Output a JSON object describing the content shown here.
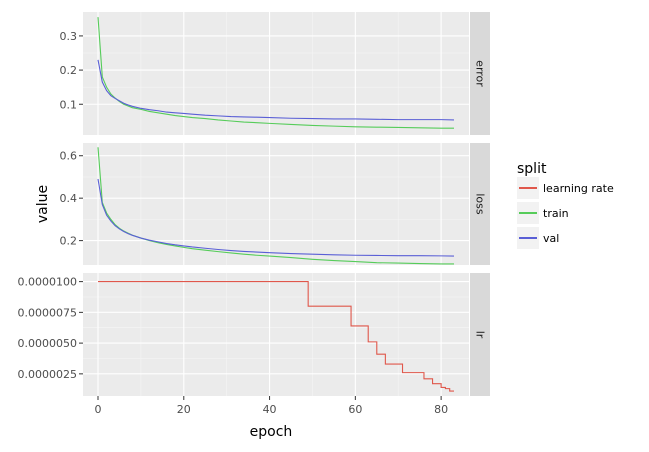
{
  "chart_data": {
    "type": "line",
    "xlabel": "epoch",
    "ylabel": "value",
    "x_ticks": [
      0,
      20,
      40,
      60,
      80
    ],
    "xlim": [
      -3.5,
      86.5
    ],
    "legend": {
      "title": "split",
      "placement": "right",
      "entries": [
        {
          "label": "learning rate",
          "color": "#e0574b"
        },
        {
          "label": "train",
          "color": "#56cc5a"
        },
        {
          "label": "val",
          "color": "#5a5fd6"
        }
      ]
    },
    "panels": [
      {
        "strip": "error",
        "ylim": [
          0.01,
          0.37
        ],
        "y_ticks": [
          0.1,
          0.2,
          0.3
        ],
        "y_tick_labels": [
          "0.1",
          "0.2",
          "0.3"
        ],
        "series": [
          {
            "name": "train",
            "color": "#56cc5a",
            "x": [
              0,
              1,
              2,
              3,
              4,
              5,
              6,
              7,
              8,
              10,
              12,
              14,
              16,
              18,
              20,
              22,
              25,
              28,
              31,
              34,
              37,
              40,
              45,
              50,
              55,
              60,
              65,
              70,
              75,
              80,
              83
            ],
            "y": [
              0.355,
              0.18,
              0.15,
              0.13,
              0.118,
              0.108,
              0.1,
              0.095,
              0.09,
              0.085,
              0.079,
              0.075,
              0.071,
              0.067,
              0.064,
              0.061,
              0.058,
              0.054,
              0.051,
              0.048,
              0.046,
              0.044,
              0.041,
              0.038,
              0.036,
              0.034,
              0.033,
              0.032,
              0.031,
              0.03,
              0.03
            ]
          },
          {
            "name": "val",
            "color": "#5a5fd6",
            "x": [
              0,
              1,
              2,
              3,
              4,
              5,
              6,
              7,
              8,
              10,
              12,
              14,
              16,
              18,
              20,
              22,
              25,
              28,
              31,
              34,
              37,
              40,
              45,
              50,
              55,
              60,
              65,
              70,
              75,
              80,
              83
            ],
            "y": [
              0.23,
              0.165,
              0.14,
              0.125,
              0.117,
              0.11,
              0.103,
              0.098,
              0.094,
              0.088,
              0.084,
              0.081,
              0.077,
              0.075,
              0.073,
              0.071,
              0.068,
              0.066,
              0.064,
              0.063,
              0.062,
              0.061,
              0.059,
              0.058,
              0.057,
              0.057,
              0.056,
              0.055,
              0.055,
              0.055,
              0.054
            ]
          }
        ]
      },
      {
        "strip": "loss",
        "ylim": [
          0.085,
          0.66
        ],
        "y_ticks": [
          0.2,
          0.4,
          0.6
        ],
        "y_tick_labels": [
          "0.2",
          "0.4",
          "0.6"
        ],
        "series": [
          {
            "name": "train",
            "color": "#56cc5a",
            "x": [
              0,
              1,
              2,
              3,
              4,
              5,
              6,
              7,
              8,
              10,
              12,
              14,
              16,
              18,
              20,
              22,
              25,
              28,
              31,
              34,
              37,
              40,
              45,
              50,
              55,
              60,
              65,
              70,
              75,
              80,
              83
            ],
            "y": [
              0.64,
              0.38,
              0.33,
              0.3,
              0.275,
              0.258,
              0.245,
              0.235,
              0.226,
              0.212,
              0.2,
              0.19,
              0.182,
              0.175,
              0.168,
              0.162,
              0.155,
              0.148,
              0.142,
              0.136,
              0.131,
              0.127,
              0.12,
              0.112,
              0.106,
              0.101,
              0.096,
              0.094,
              0.092,
              0.09,
              0.09
            ]
          },
          {
            "name": "val",
            "color": "#5a5fd6",
            "x": [
              0,
              1,
              2,
              3,
              4,
              5,
              6,
              7,
              8,
              10,
              12,
              14,
              16,
              18,
              20,
              22,
              25,
              28,
              31,
              34,
              37,
              40,
              45,
              50,
              55,
              60,
              65,
              70,
              75,
              80,
              83
            ],
            "y": [
              0.49,
              0.37,
              0.32,
              0.292,
              0.27,
              0.255,
              0.243,
              0.233,
              0.225,
              0.212,
              0.202,
              0.194,
              0.186,
              0.18,
              0.175,
              0.17,
              0.164,
              0.158,
              0.153,
              0.149,
              0.146,
              0.143,
              0.139,
              0.136,
              0.133,
              0.131,
              0.13,
              0.129,
              0.129,
              0.128,
              0.127
            ]
          }
        ]
      },
      {
        "strip": "lr",
        "ylim": [
          7e-07,
          1.07e-05
        ],
        "y_ticks": [
          2.5e-06,
          5e-06,
          7.5e-06,
          1e-05
        ],
        "y_tick_labels": [
          "0.0000025",
          "0.0000050",
          "0.0000075",
          "0.0000100"
        ],
        "series": [
          {
            "name": "learning rate",
            "color": "#e0574b",
            "step": true,
            "x": [
              0,
              48,
              49,
              58,
              59,
              62,
              63,
              64,
              65,
              66,
              67,
              70,
              71,
              75,
              76,
              77,
              78,
              79,
              80,
              81,
              82,
              83
            ],
            "y": [
              1e-05,
              1e-05,
              8e-06,
              8e-06,
              6.4e-06,
              6.4e-06,
              5.1e-06,
              5.1e-06,
              4.1e-06,
              4.1e-06,
              3.3e-06,
              3.3e-06,
              2.6e-06,
              2.6e-06,
              2.1e-06,
              2.1e-06,
              1.7e-06,
              1.7e-06,
              1.4e-06,
              1.3e-06,
              1.1e-06,
              1.1e-06
            ]
          }
        ]
      }
    ]
  }
}
